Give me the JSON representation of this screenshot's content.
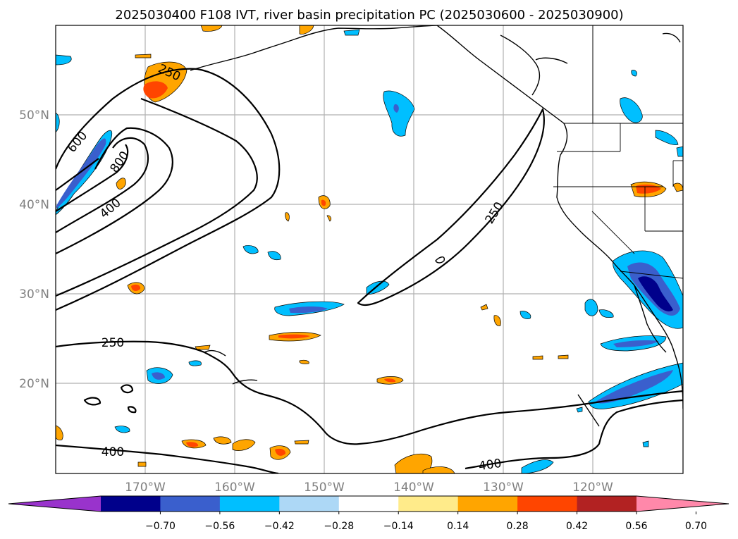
{
  "title": "2025030400 F108 IVT, river basin precipitation PC (2025030600 - 2025030900)",
  "lat_labels": [
    "50°N",
    "40°N",
    "30°N",
    "20°N"
  ],
  "lon_labels": [
    "170°W",
    "160°W",
    "150°W",
    "140°W",
    "130°W",
    "120°W"
  ],
  "ivt_contour_labels": [
    "250",
    "600",
    "800",
    "400",
    "250",
    "250",
    "400",
    "400"
  ],
  "colorbar": {
    "tick_labels": [
      "−0.70",
      "−0.56",
      "−0.42",
      "−0.28",
      "−0.14",
      "0.14",
      "0.28",
      "0.42",
      "0.56",
      "0.70"
    ],
    "colors": [
      "#9933cc",
      "#00008b",
      "#3a5fcd",
      "#00bfff",
      "#add8f6",
      "#ffffff",
      "#ffeb8a",
      "#ffa500",
      "#ff4500",
      "#b22222",
      "#ff88aa"
    ]
  }
}
